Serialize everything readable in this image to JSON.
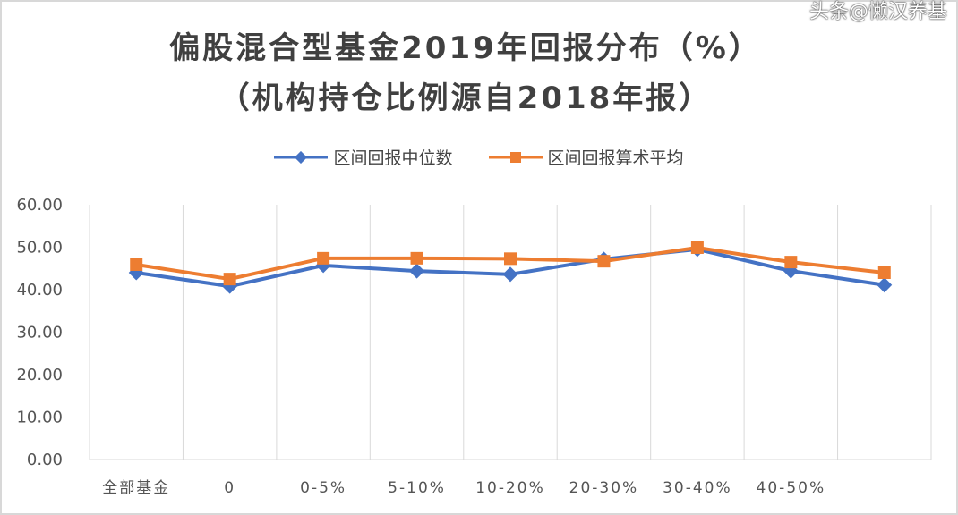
{
  "chart_data": {
    "type": "line",
    "title": "偏股混合型基金2019年回报分布（%）",
    "subtitle": "（机构持仓比例源自2018年报）",
    "categories": [
      "全部基金",
      "0",
      "0-5%",
      "5-10%",
      "10-20%",
      "20-30%",
      "30-40%",
      "40-50%",
      ""
    ],
    "series": [
      {
        "name": "区间回报中位数",
        "color": "#4472C4",
        "marker": "diamond",
        "values": [
          44.0,
          40.8,
          45.7,
          44.4,
          43.6,
          47.2,
          49.5,
          44.4,
          41.1
        ]
      },
      {
        "name": "区间回报算术平均",
        "color": "#ED7D31",
        "marker": "square",
        "values": [
          45.9,
          42.5,
          47.4,
          47.4,
          47.3,
          46.7,
          49.9,
          46.5,
          44.0
        ]
      }
    ],
    "yticks": [
      "0.00",
      "10.00",
      "20.00",
      "30.00",
      "40.00",
      "50.00",
      "60.00"
    ],
    "ylim": [
      0,
      60
    ],
    "grid": "vertical",
    "legend": "top"
  },
  "watermark": "头条@懒汉养基"
}
